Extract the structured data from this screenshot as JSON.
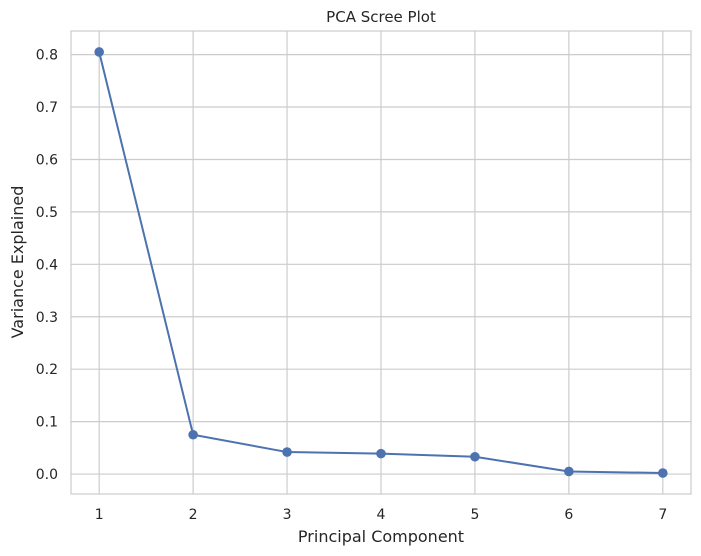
{
  "chart_data": {
    "type": "line",
    "title": "PCA Scree Plot",
    "xlabel": "Principal Component",
    "ylabel": "Variance Explained",
    "x": [
      1,
      2,
      3,
      4,
      5,
      6,
      7
    ],
    "series": [
      {
        "values": [
          0.805,
          0.075,
          0.042,
          0.039,
          0.033,
          0.005,
          0.002
        ]
      }
    ],
    "xticks": [
      "1",
      "2",
      "3",
      "4",
      "5",
      "6",
      "7"
    ],
    "yticks": [
      "0.0",
      "0.1",
      "0.2",
      "0.3",
      "0.4",
      "0.5",
      "0.6",
      "0.7",
      "0.8"
    ],
    "xlim": [
      0.7,
      7.3
    ],
    "ylim": [
      -0.038,
      0.845
    ],
    "grid": true,
    "line_color": "#4c72b0",
    "grid_color": "#cccccc",
    "marker": "circle"
  }
}
